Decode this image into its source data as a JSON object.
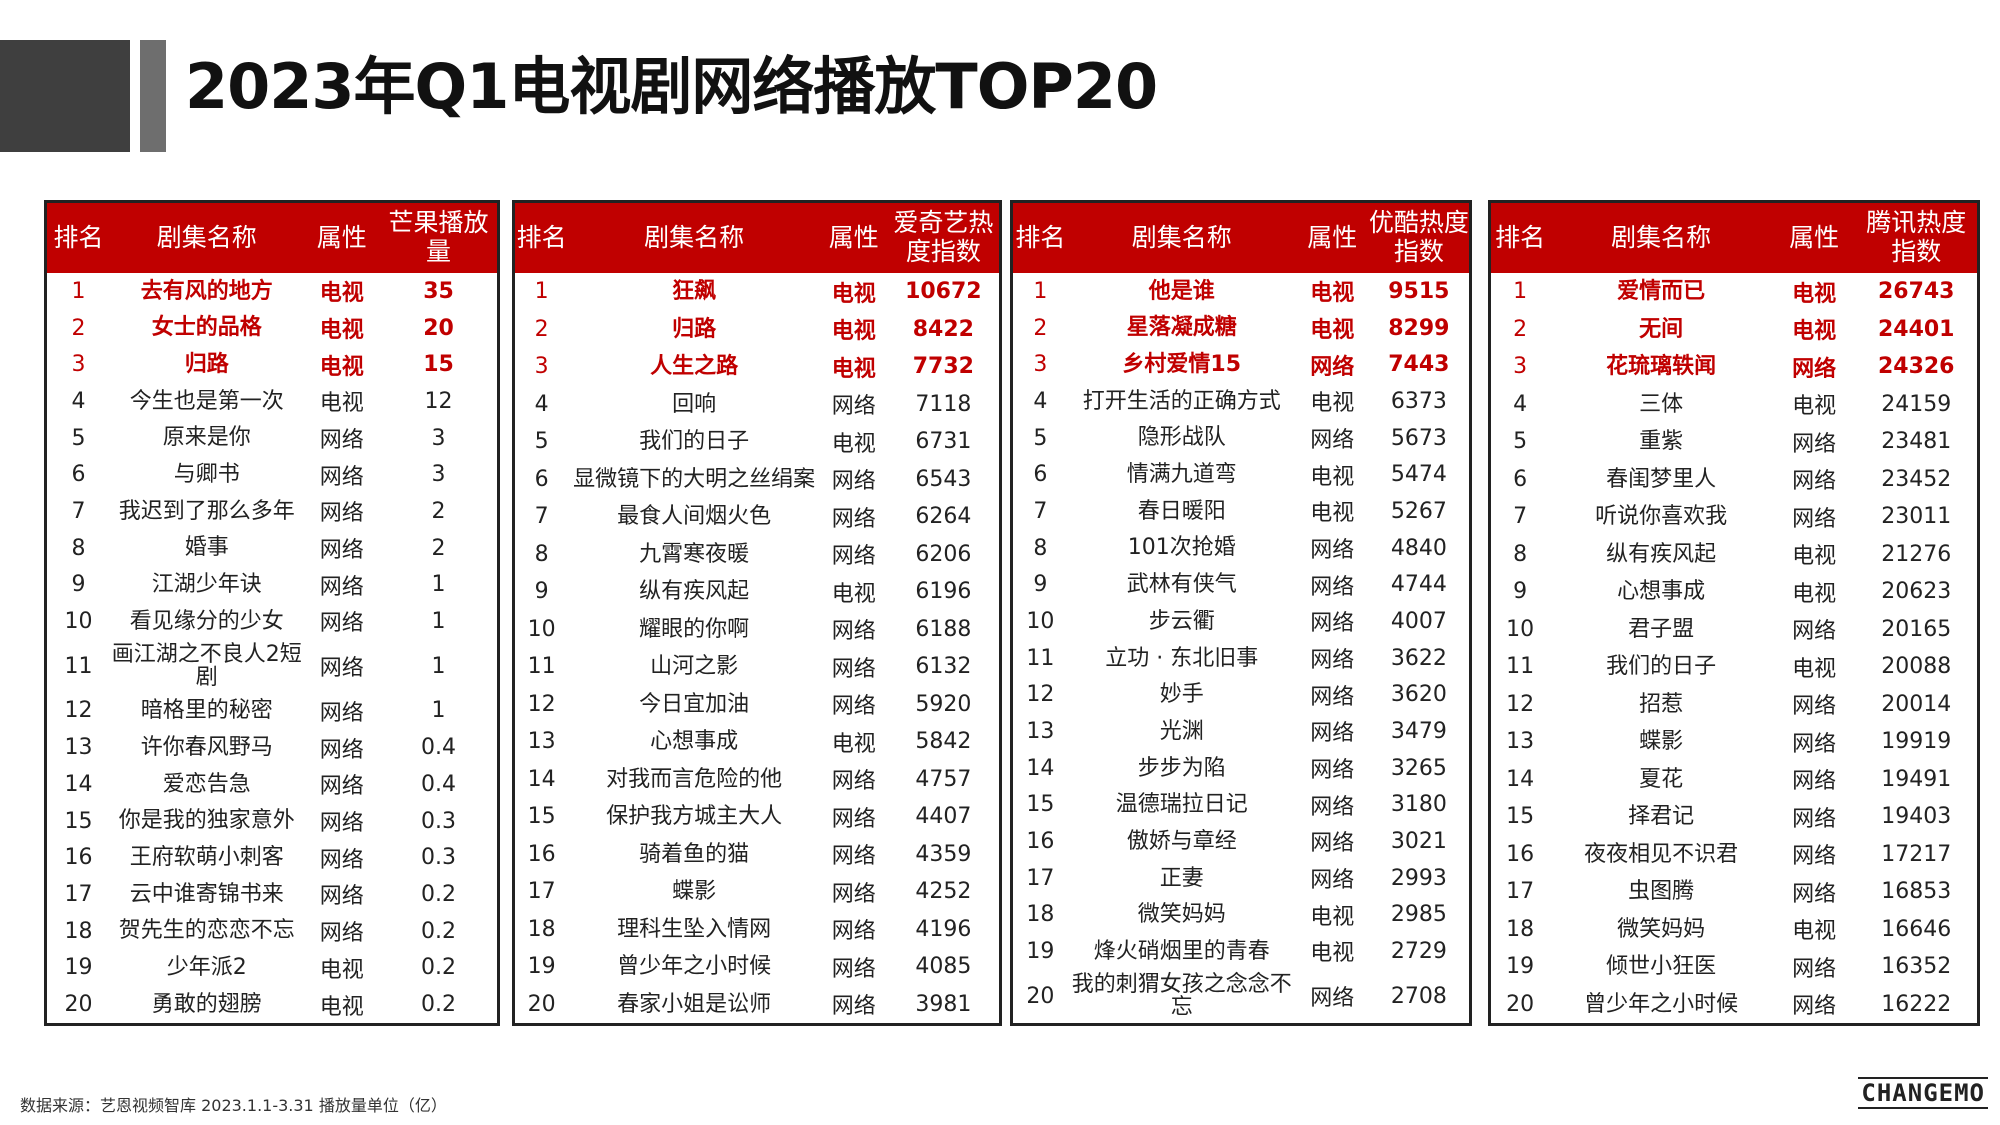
{
  "page": {
    "title": "2023年Q1电视剧网络播放TOP20",
    "footnote": "数据来源：艺恩视频智库 2023.1.1-3.31 播放量单位（亿）",
    "brand": "CHANGEMO",
    "accent_color": "#c00000"
  },
  "tables": [
    {
      "headers": {
        "rank": "排名",
        "name": "剧集名称",
        "attr": "属性",
        "metric": "芒果播放量"
      },
      "rows": [
        {
          "rank": "1",
          "name": "去有风的地方",
          "attr": "电视",
          "value": "35"
        },
        {
          "rank": "2",
          "name": "女士的品格",
          "attr": "电视",
          "value": "20"
        },
        {
          "rank": "3",
          "name": "归路",
          "attr": "电视",
          "value": "15"
        },
        {
          "rank": "4",
          "name": "今生也是第一次",
          "attr": "电视",
          "value": "12"
        },
        {
          "rank": "5",
          "name": "原来是你",
          "attr": "网络",
          "value": "3"
        },
        {
          "rank": "6",
          "name": "与卿书",
          "attr": "网络",
          "value": "3"
        },
        {
          "rank": "7",
          "name": "我迟到了那么多年",
          "attr": "网络",
          "value": "2"
        },
        {
          "rank": "8",
          "name": "婚事",
          "attr": "网络",
          "value": "2"
        },
        {
          "rank": "9",
          "name": "江湖少年诀",
          "attr": "网络",
          "value": "1"
        },
        {
          "rank": "10",
          "name": "看见缘分的少女",
          "attr": "网络",
          "value": "1"
        },
        {
          "rank": "11",
          "name": "画江湖之不良人2短剧",
          "attr": "网络",
          "value": "1"
        },
        {
          "rank": "12",
          "name": "暗格里的秘密",
          "attr": "网络",
          "value": "1"
        },
        {
          "rank": "13",
          "name": "许你春风野马",
          "attr": "网络",
          "value": "0.4"
        },
        {
          "rank": "14",
          "name": "爱恋告急",
          "attr": "网络",
          "value": "0.4"
        },
        {
          "rank": "15",
          "name": "你是我的独家意外",
          "attr": "网络",
          "value": "0.3"
        },
        {
          "rank": "16",
          "name": "王府软萌小刺客",
          "attr": "网络",
          "value": "0.3"
        },
        {
          "rank": "17",
          "name": "云中谁寄锦书来",
          "attr": "网络",
          "value": "0.2"
        },
        {
          "rank": "18",
          "name": "贺先生的恋恋不忘",
          "attr": "网络",
          "value": "0.2"
        },
        {
          "rank": "19",
          "name": "少年派2",
          "attr": "电视",
          "value": "0.2"
        },
        {
          "rank": "20",
          "name": "勇敢的翅膀",
          "attr": "电视",
          "value": "0.2"
        }
      ]
    },
    {
      "headers": {
        "rank": "排名",
        "name": "剧集名称",
        "attr": "属性",
        "metric": "爱奇艺热度指数"
      },
      "rows": [
        {
          "rank": "1",
          "name": "狂飙",
          "attr": "电视",
          "value": "10672"
        },
        {
          "rank": "2",
          "name": "归路",
          "attr": "电视",
          "value": "8422"
        },
        {
          "rank": "3",
          "name": "人生之路",
          "attr": "电视",
          "value": "7732"
        },
        {
          "rank": "4",
          "name": "回响",
          "attr": "网络",
          "value": "7118"
        },
        {
          "rank": "5",
          "name": "我们的日子",
          "attr": "电视",
          "value": "6731"
        },
        {
          "rank": "6",
          "name": "显微镜下的大明之丝绢案",
          "attr": "网络",
          "value": "6543"
        },
        {
          "rank": "7",
          "name": "最食人间烟火色",
          "attr": "网络",
          "value": "6264"
        },
        {
          "rank": "8",
          "name": "九霄寒夜暖",
          "attr": "网络",
          "value": "6206"
        },
        {
          "rank": "9",
          "name": "纵有疾风起",
          "attr": "电视",
          "value": "6196"
        },
        {
          "rank": "10",
          "name": "耀眼的你啊",
          "attr": "网络",
          "value": "6188"
        },
        {
          "rank": "11",
          "name": "山河之影",
          "attr": "网络",
          "value": "6132"
        },
        {
          "rank": "12",
          "name": "今日宜加油",
          "attr": "网络",
          "value": "5920"
        },
        {
          "rank": "13",
          "name": "心想事成",
          "attr": "电视",
          "value": "5842"
        },
        {
          "rank": "14",
          "name": "对我而言危险的他",
          "attr": "网络",
          "value": "4757"
        },
        {
          "rank": "15",
          "name": "保护我方城主大人",
          "attr": "网络",
          "value": "4407"
        },
        {
          "rank": "16",
          "name": "骑着鱼的猫",
          "attr": "网络",
          "value": "4359"
        },
        {
          "rank": "17",
          "name": "蝶影",
          "attr": "网络",
          "value": "4252"
        },
        {
          "rank": "18",
          "name": "理科生坠入情网",
          "attr": "网络",
          "value": "4196"
        },
        {
          "rank": "19",
          "name": "曾少年之小时候",
          "attr": "网络",
          "value": "4085"
        },
        {
          "rank": "20",
          "name": "春家小姐是讼师",
          "attr": "网络",
          "value": "3981"
        }
      ]
    },
    {
      "headers": {
        "rank": "排名",
        "name": "剧集名称",
        "attr": "属性",
        "metric": "优酷热度指数"
      },
      "rows": [
        {
          "rank": "1",
          "name": "他是谁",
          "attr": "电视",
          "value": "9515"
        },
        {
          "rank": "2",
          "name": "星落凝成糖",
          "attr": "电视",
          "value": "8299"
        },
        {
          "rank": "3",
          "name": "乡村爱情15",
          "attr": "网络",
          "value": "7443"
        },
        {
          "rank": "4",
          "name": "打开生活的正确方式",
          "attr": "电视",
          "value": "6373"
        },
        {
          "rank": "5",
          "name": "隐形战队",
          "attr": "网络",
          "value": "5673"
        },
        {
          "rank": "6",
          "name": "情满九道弯",
          "attr": "电视",
          "value": "5474"
        },
        {
          "rank": "7",
          "name": "春日暖阳",
          "attr": "电视",
          "value": "5267"
        },
        {
          "rank": "8",
          "name": "101次抢婚",
          "attr": "网络",
          "value": "4840"
        },
        {
          "rank": "9",
          "name": "武林有侠气",
          "attr": "网络",
          "value": "4744"
        },
        {
          "rank": "10",
          "name": "步云衢",
          "attr": "网络",
          "value": "4007"
        },
        {
          "rank": "11",
          "name": "立功 · 东北旧事",
          "attr": "网络",
          "value": "3622"
        },
        {
          "rank": "12",
          "name": "妙手",
          "attr": "网络",
          "value": "3620"
        },
        {
          "rank": "13",
          "name": "光渊",
          "attr": "网络",
          "value": "3479"
        },
        {
          "rank": "14",
          "name": "步步为陷",
          "attr": "网络",
          "value": "3265"
        },
        {
          "rank": "15",
          "name": "温德瑞拉日记",
          "attr": "网络",
          "value": "3180"
        },
        {
          "rank": "16",
          "name": "傲娇与章经",
          "attr": "网络",
          "value": "3021"
        },
        {
          "rank": "17",
          "name": "正妻",
          "attr": "网络",
          "value": "2993"
        },
        {
          "rank": "18",
          "name": "微笑妈妈",
          "attr": "电视",
          "value": "2985"
        },
        {
          "rank": "19",
          "name": "烽火硝烟里的青春",
          "attr": "电视",
          "value": "2729"
        },
        {
          "rank": "20",
          "name": "我的刺猬女孩之念念不忘",
          "attr": "网络",
          "value": "2708"
        }
      ]
    },
    {
      "headers": {
        "rank": "排名",
        "name": "剧集名称",
        "attr": "属性",
        "metric": "腾讯热度指数"
      },
      "rows": [
        {
          "rank": "1",
          "name": "爱情而已",
          "attr": "电视",
          "value": "26743"
        },
        {
          "rank": "2",
          "name": "无间",
          "attr": "电视",
          "value": "24401"
        },
        {
          "rank": "3",
          "name": "花琉璃轶闻",
          "attr": "网络",
          "value": "24326"
        },
        {
          "rank": "4",
          "name": "三体",
          "attr": "电视",
          "value": "24159"
        },
        {
          "rank": "5",
          "name": "重紫",
          "attr": "网络",
          "value": "23481"
        },
        {
          "rank": "6",
          "name": "春闺梦里人",
          "attr": "网络",
          "value": "23452"
        },
        {
          "rank": "7",
          "name": "听说你喜欢我",
          "attr": "网络",
          "value": "23011"
        },
        {
          "rank": "8",
          "name": "纵有疾风起",
          "attr": "电视",
          "value": "21276"
        },
        {
          "rank": "9",
          "name": "心想事成",
          "attr": "电视",
          "value": "20623"
        },
        {
          "rank": "10",
          "name": "君子盟",
          "attr": "网络",
          "value": "20165"
        },
        {
          "rank": "11",
          "name": "我们的日子",
          "attr": "电视",
          "value": "20088"
        },
        {
          "rank": "12",
          "name": "招惹",
          "attr": "网络",
          "value": "20014"
        },
        {
          "rank": "13",
          "name": "蝶影",
          "attr": "网络",
          "value": "19919"
        },
        {
          "rank": "14",
          "name": "夏花",
          "attr": "网络",
          "value": "19491"
        },
        {
          "rank": "15",
          "name": "择君记",
          "attr": "网络",
          "value": "19403"
        },
        {
          "rank": "16",
          "name": "夜夜相见不识君",
          "attr": "网络",
          "value": "17217"
        },
        {
          "rank": "17",
          "name": "虫图腾",
          "attr": "网络",
          "value": "16853"
        },
        {
          "rank": "18",
          "name": "微笑妈妈",
          "attr": "电视",
          "value": "16646"
        },
        {
          "rank": "19",
          "name": "倾世小狂医",
          "attr": "网络",
          "value": "16352"
        },
        {
          "rank": "20",
          "name": "曾少年之小时候",
          "attr": "网络",
          "value": "16222"
        }
      ]
    }
  ]
}
